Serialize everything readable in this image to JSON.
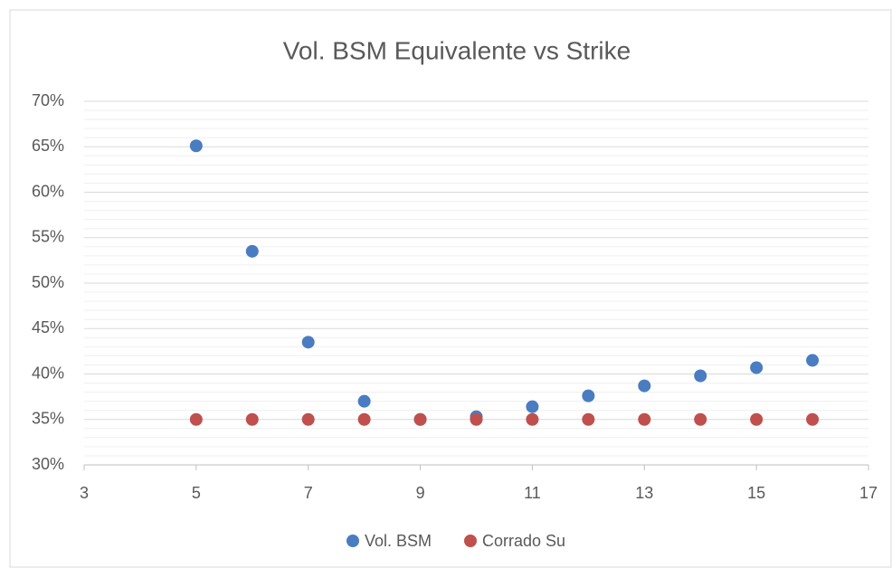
{
  "chart_data": {
    "type": "scatter",
    "title": "Vol. BSM Equivalente vs Strike",
    "series": [
      {
        "name": "Vol. BSM",
        "color": "#4a7cc1",
        "x": [
          5,
          6,
          7,
          8,
          9,
          10,
          11,
          12,
          13,
          14,
          15,
          16
        ],
        "values": [
          65.1,
          53.5,
          43.5,
          37.0,
          35.0,
          35.3,
          36.4,
          37.6,
          38.7,
          39.8,
          40.7,
          41.5
        ]
      },
      {
        "name": "Corrado Su",
        "color": "#c0504d",
        "x": [
          5,
          6,
          7,
          8,
          9,
          10,
          11,
          12,
          13,
          14,
          15,
          16
        ],
        "values": [
          35,
          35,
          35,
          35,
          35,
          35,
          35,
          35,
          35,
          35,
          35,
          35
        ]
      }
    ],
    "xlim": [
      3,
      17
    ],
    "xticks": [
      3,
      5,
      7,
      9,
      11,
      13,
      15,
      17
    ],
    "ylim": [
      30,
      70
    ],
    "yticks": [
      {
        "value": 30,
        "label": "30%"
      },
      {
        "value": 35,
        "label": "35%"
      },
      {
        "value": 40,
        "label": "40%"
      },
      {
        "value": 45,
        "label": "45%"
      },
      {
        "value": 50,
        "label": "50%"
      },
      {
        "value": 55,
        "label": "55%"
      },
      {
        "value": 60,
        "label": "60%"
      },
      {
        "value": 65,
        "label": "65%"
      },
      {
        "value": 70,
        "label": "70%"
      }
    ],
    "y_minor_ticks": [
      31,
      32,
      33,
      34,
      36,
      37,
      38,
      39,
      41,
      42,
      43,
      44,
      46,
      47,
      48,
      49,
      51,
      52,
      53,
      54,
      56,
      57,
      58,
      59,
      61,
      62,
      63,
      64,
      66,
      67,
      68,
      69
    ],
    "grid": true,
    "legend": "bottom"
  }
}
